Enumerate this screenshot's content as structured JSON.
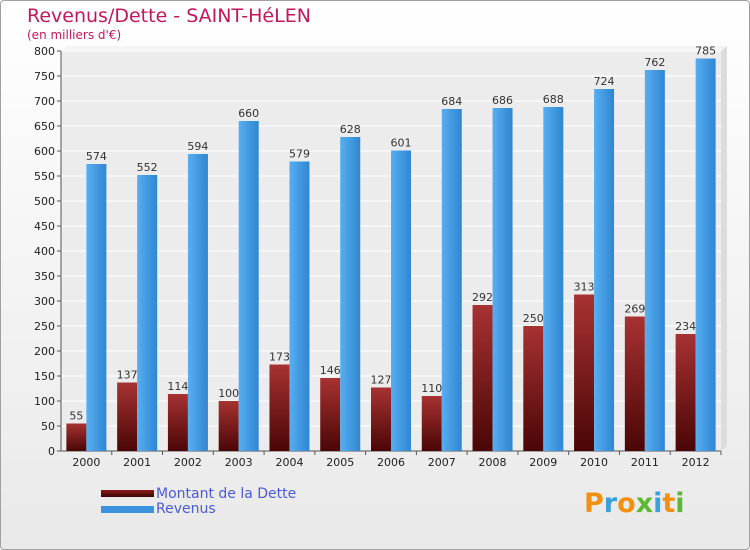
{
  "chart_data": {
    "type": "bar",
    "title": "Revenus/Dette - SAINT-HéLEN",
    "subtitle": "(en milliers d'€)",
    "categories": [
      "2000",
      "2001",
      "2002",
      "2003",
      "2004",
      "2005",
      "2006",
      "2007",
      "2008",
      "2009",
      "2010",
      "2011",
      "2012"
    ],
    "series": [
      {
        "name": "Montant de la Dette",
        "color": "#8b1a1a",
        "values": [
          55,
          137,
          114,
          100,
          173,
          146,
          127,
          110,
          292,
          250,
          313,
          269,
          234
        ]
      },
      {
        "name": "Revenus",
        "color": "#3b93dd",
        "values": [
          574,
          552,
          594,
          660,
          579,
          628,
          601,
          684,
          686,
          688,
          724,
          762,
          785
        ]
      }
    ],
    "ylim": [
      0,
      800
    ],
    "yticks": [
      0,
      50,
      100,
      150,
      200,
      250,
      300,
      350,
      400,
      450,
      500,
      550,
      600,
      650,
      700,
      750,
      800
    ],
    "grid": true,
    "legend": "bottom-left"
  },
  "logo": {
    "letters": [
      "P",
      "r",
      "o",
      "x",
      "i",
      "t",
      "i"
    ],
    "colors": [
      "#f29111",
      "#3aa0dc",
      "#f29111",
      "#5cb82e",
      "#3aa0dc",
      "#f29111",
      "#5cb82e"
    ]
  }
}
